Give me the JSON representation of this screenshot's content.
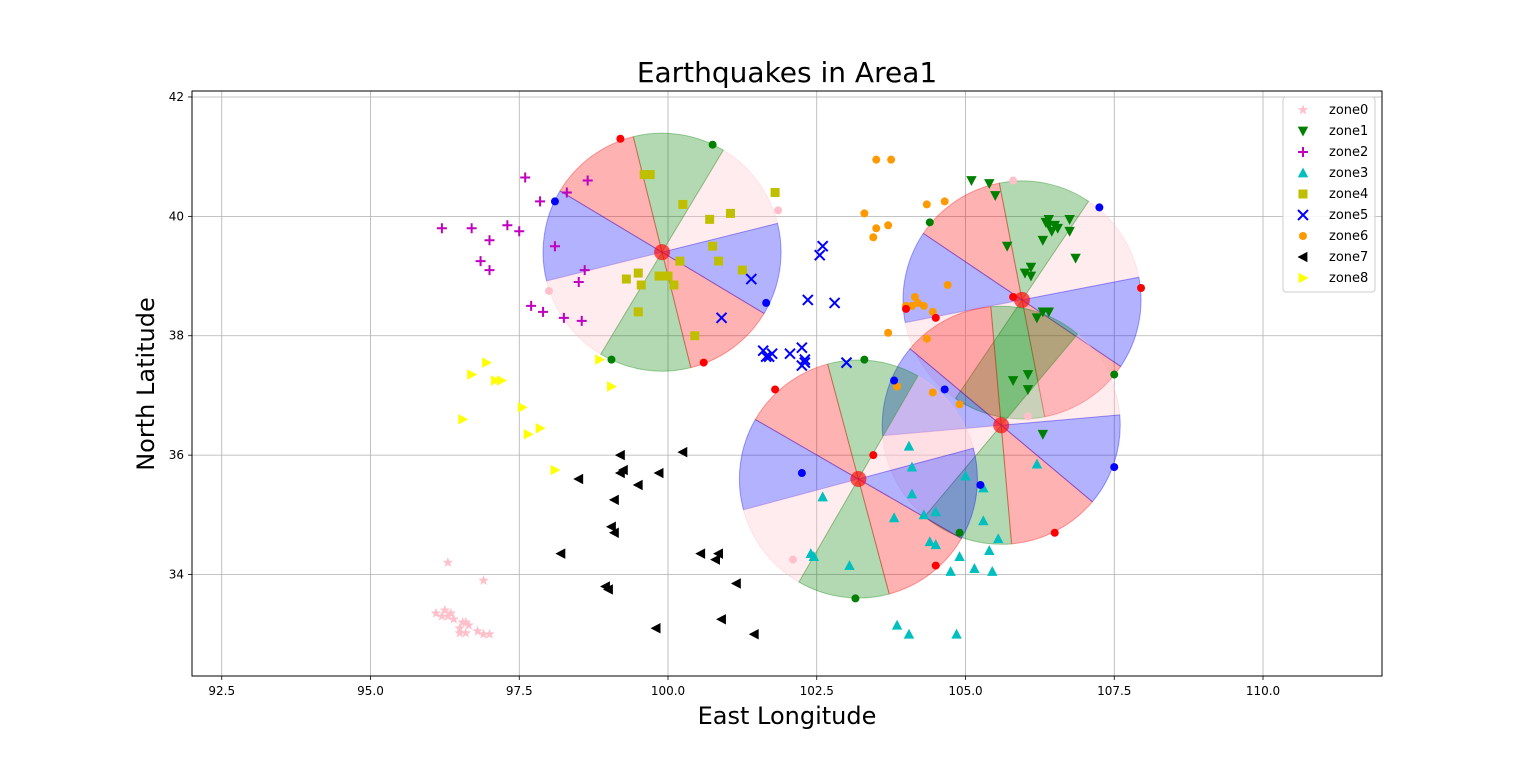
{
  "chart_data": {
    "type": "scatter",
    "title": "Earthquakes in Area1",
    "xlabel": "East Longitude",
    "ylabel": "North Latitude",
    "xlim": [
      92.0,
      112.0
    ],
    "ylim": [
      32.3,
      42.1
    ],
    "xticks": [
      92.5,
      95.0,
      97.5,
      100.0,
      102.5,
      105.0,
      107.5,
      110.0
    ],
    "xtick_labels": [
      "92.5",
      "95.0",
      "97.5",
      "100.0",
      "102.5",
      "105.0",
      "107.5",
      "110.0"
    ],
    "yticks": [
      34,
      36,
      38,
      40,
      42
    ],
    "ytick_labels": [
      "34",
      "36",
      "38",
      "40",
      "42"
    ],
    "grid": true,
    "legend_position": "top-right",
    "series": [
      {
        "name": "zone0",
        "marker": "star",
        "color": "#ffc0cb",
        "points": [
          [
            96.3,
            34.2
          ],
          [
            96.9,
            33.9
          ],
          [
            96.1,
            33.35
          ],
          [
            96.2,
            33.3
          ],
          [
            96.3,
            33.3
          ],
          [
            96.35,
            33.35
          ],
          [
            96.4,
            33.25
          ],
          [
            96.5,
            33.1
          ],
          [
            96.55,
            33.2
          ],
          [
            96.6,
            33.2
          ],
          [
            96.65,
            33.15
          ],
          [
            96.5,
            33.02
          ],
          [
            96.6,
            33.02
          ],
          [
            96.8,
            33.05
          ],
          [
            96.9,
            33.0
          ],
          [
            97.0,
            33.0
          ],
          [
            96.25,
            33.4
          ]
        ]
      },
      {
        "name": "zone1",
        "marker": "triangle-down",
        "color": "#008000",
        "points": [
          [
            105.1,
            40.6
          ],
          [
            105.4,
            40.55
          ],
          [
            105.5,
            40.35
          ],
          [
            105.7,
            39.5
          ],
          [
            106.1,
            39.15
          ],
          [
            106.0,
            39.05
          ],
          [
            106.1,
            39.0
          ],
          [
            106.3,
            39.6
          ],
          [
            106.35,
            39.9
          ],
          [
            106.4,
            39.85
          ],
          [
            106.45,
            39.75
          ],
          [
            106.5,
            39.85
          ],
          [
            106.55,
            39.8
          ],
          [
            106.4,
            39.95
          ],
          [
            106.75,
            39.95
          ],
          [
            106.75,
            39.75
          ],
          [
            106.85,
            39.3
          ],
          [
            106.2,
            38.3
          ],
          [
            106.3,
            38.4
          ],
          [
            106.4,
            38.4
          ],
          [
            105.8,
            37.25
          ],
          [
            106.05,
            37.35
          ],
          [
            106.05,
            37.1
          ],
          [
            106.3,
            36.35
          ]
        ]
      },
      {
        "name": "zone2",
        "marker": "plus",
        "color": "#bf00bf",
        "points": [
          [
            96.2,
            39.8
          ],
          [
            96.7,
            39.8
          ],
          [
            97.3,
            39.85
          ],
          [
            97.5,
            39.75
          ],
          [
            96.85,
            39.25
          ],
          [
            97.0,
            39.6
          ],
          [
            97.0,
            39.1
          ],
          [
            97.6,
            40.65
          ],
          [
            97.85,
            40.25
          ],
          [
            98.1,
            39.5
          ],
          [
            98.3,
            40.4
          ],
          [
            98.65,
            40.6
          ],
          [
            98.6,
            39.1
          ],
          [
            98.5,
            38.9
          ],
          [
            97.7,
            38.5
          ],
          [
            97.9,
            38.4
          ],
          [
            98.25,
            38.3
          ],
          [
            98.55,
            38.25
          ]
        ]
      },
      {
        "name": "zone3",
        "marker": "triangle-up",
        "color": "#00bfbf",
        "points": [
          [
            102.6,
            35.3
          ],
          [
            102.4,
            34.35
          ],
          [
            102.45,
            34.3
          ],
          [
            103.05,
            34.15
          ],
          [
            103.8,
            34.95
          ],
          [
            104.1,
            35.8
          ],
          [
            104.1,
            35.35
          ],
          [
            104.5,
            35.05
          ],
          [
            104.4,
            34.55
          ],
          [
            104.5,
            34.5
          ],
          [
            104.75,
            34.05
          ],
          [
            104.9,
            34.3
          ],
          [
            105.15,
            34.1
          ],
          [
            105.3,
            34.9
          ],
          [
            105.4,
            34.4
          ],
          [
            105.45,
            34.05
          ],
          [
            105.55,
            34.6
          ],
          [
            105.3,
            35.45
          ],
          [
            105.0,
            35.65
          ],
          [
            106.2,
            35.85
          ],
          [
            104.05,
            33.0
          ],
          [
            103.85,
            33.15
          ],
          [
            104.85,
            33.0
          ],
          [
            104.3,
            35.0
          ],
          [
            104.05,
            36.15
          ]
        ]
      },
      {
        "name": "zone4",
        "marker": "square",
        "color": "#bfbf00",
        "points": [
          [
            99.3,
            38.95
          ],
          [
            99.5,
            39.05
          ],
          [
            99.7,
            40.7
          ],
          [
            99.6,
            40.7
          ],
          [
            99.85,
            39.0
          ],
          [
            99.55,
            38.85
          ],
          [
            99.5,
            38.4
          ],
          [
            100.0,
            39.0
          ],
          [
            100.1,
            38.85
          ],
          [
            100.25,
            40.2
          ],
          [
            100.2,
            39.25
          ],
          [
            100.7,
            39.95
          ],
          [
            100.75,
            39.5
          ],
          [
            101.05,
            40.05
          ],
          [
            100.85,
            39.25
          ],
          [
            101.25,
            39.1
          ],
          [
            101.8,
            40.4
          ],
          [
            100.45,
            38.0
          ]
        ]
      },
      {
        "name": "zone5",
        "marker": "x",
        "color": "#0000ff",
        "points": [
          [
            101.4,
            38.95
          ],
          [
            100.9,
            38.3
          ],
          [
            102.6,
            39.5
          ],
          [
            102.55,
            39.35
          ],
          [
            102.35,
            38.6
          ],
          [
            102.8,
            38.55
          ],
          [
            101.6,
            37.75
          ],
          [
            101.7,
            37.65
          ],
          [
            101.75,
            37.7
          ],
          [
            101.65,
            37.65
          ],
          [
            102.05,
            37.7
          ],
          [
            102.25,
            37.8
          ],
          [
            102.3,
            37.6
          ],
          [
            102.25,
            37.5
          ],
          [
            102.3,
            37.55
          ],
          [
            103.0,
            37.55
          ]
        ]
      },
      {
        "name": "zone6",
        "marker": "circle",
        "color": "#ff9900",
        "points": [
          [
            103.5,
            40.95
          ],
          [
            103.75,
            40.95
          ],
          [
            103.3,
            40.05
          ],
          [
            103.5,
            39.8
          ],
          [
            103.7,
            39.85
          ],
          [
            103.45,
            39.65
          ],
          [
            104.35,
            40.2
          ],
          [
            104.65,
            40.25
          ],
          [
            104.0,
            38.5
          ],
          [
            104.1,
            38.5
          ],
          [
            104.2,
            38.55
          ],
          [
            104.3,
            38.5
          ],
          [
            104.15,
            38.65
          ],
          [
            104.45,
            38.4
          ],
          [
            104.7,
            38.85
          ],
          [
            103.7,
            38.05
          ],
          [
            104.35,
            37.95
          ],
          [
            103.85,
            37.15
          ],
          [
            104.45,
            37.05
          ],
          [
            104.9,
            36.85
          ]
        ]
      },
      {
        "name": "zone7",
        "marker": "triangle-left",
        "color": "#000000",
        "points": [
          [
            100.25,
            36.05
          ],
          [
            99.2,
            36.0
          ],
          [
            99.25,
            35.75
          ],
          [
            99.2,
            35.7
          ],
          [
            99.85,
            35.7
          ],
          [
            99.5,
            35.5
          ],
          [
            98.5,
            35.6
          ],
          [
            99.1,
            35.25
          ],
          [
            99.05,
            34.8
          ],
          [
            99.1,
            34.7
          ],
          [
            98.2,
            34.35
          ],
          [
            100.55,
            34.35
          ],
          [
            100.85,
            34.35
          ],
          [
            100.8,
            34.25
          ],
          [
            101.15,
            33.85
          ],
          [
            99.0,
            33.75
          ],
          [
            98.95,
            33.8
          ],
          [
            100.9,
            33.25
          ],
          [
            101.45,
            33.0
          ],
          [
            99.8,
            33.1
          ]
        ]
      },
      {
        "name": "zone8",
        "marker": "triangle-right",
        "color": "#ffff00",
        "points": [
          [
            96.55,
            36.6
          ],
          [
            96.7,
            37.35
          ],
          [
            96.95,
            37.55
          ],
          [
            97.2,
            37.25
          ],
          [
            97.1,
            37.25
          ],
          [
            97.55,
            36.8
          ],
          [
            97.65,
            36.35
          ],
          [
            97.85,
            36.45
          ],
          [
            98.1,
            35.75
          ],
          [
            98.85,
            37.6
          ],
          [
            99.05,
            37.15
          ]
        ]
      }
    ],
    "zone_markers": [
      {
        "color": "#ff0000",
        "points": [
          [
            99.2,
            41.3
          ],
          [
            100.6,
            37.55
          ],
          [
            103.45,
            36.0
          ],
          [
            101.8,
            37.1
          ],
          [
            104.0,
            38.45
          ],
          [
            104.5,
            38.3
          ],
          [
            104.5,
            34.15
          ],
          [
            105.8,
            38.65
          ],
          [
            106.5,
            34.7
          ],
          [
            107.95,
            38.8
          ]
        ]
      },
      {
        "color": "#0000ff",
        "points": [
          [
            98.1,
            40.25
          ],
          [
            101.65,
            38.55
          ],
          [
            102.25,
            35.7
          ],
          [
            103.8,
            37.25
          ],
          [
            104.65,
            37.1
          ],
          [
            105.25,
            35.5
          ],
          [
            107.25,
            40.15
          ],
          [
            107.5,
            35.8
          ]
        ]
      },
      {
        "color": "#008000",
        "points": [
          [
            100.75,
            41.2
          ],
          [
            99.05,
            37.6
          ],
          [
            103.3,
            37.6
          ],
          [
            103.15,
            33.6
          ],
          [
            104.4,
            39.9
          ],
          [
            104.9,
            34.7
          ],
          [
            107.5,
            37.35
          ]
        ]
      },
      {
        "color": "#ffc0cb",
        "points": [
          [
            98.0,
            38.75
          ],
          [
            101.85,
            40.1
          ],
          [
            102.1,
            34.25
          ],
          [
            105.8,
            40.6
          ],
          [
            106.05,
            36.65
          ]
        ]
      }
    ],
    "focal_mechanisms": [
      {
        "lon": 99.9,
        "lat": 39.4,
        "radius": 2.0,
        "start_angle": 14,
        "colors": [
          "#ffc0cb",
          "#008000",
          "#ff0000",
          "#0000ff",
          "#ffc0cb",
          "#008000",
          "#ff0000",
          "#0000ff"
        ]
      },
      {
        "lon": 105.95,
        "lat": 38.6,
        "radius": 2.0,
        "start_angle": 11,
        "colors": [
          "#ffc0cb",
          "#008000",
          "#ff0000",
          "#0000ff",
          "#ffc0cb",
          "#008000",
          "#ff0000",
          "#0000ff"
        ]
      },
      {
        "lon": 105.6,
        "lat": 36.5,
        "radius": 2.0,
        "start_angle": 5,
        "colors": [
          "#ffc0cb",
          "#008000",
          "#ff0000",
          "#0000ff",
          "#ffc0cb",
          "#008000",
          "#ff0000",
          "#0000ff"
        ]
      },
      {
        "lon": 103.2,
        "lat": 35.6,
        "radius": 2.0,
        "start_angle": 15,
        "colors": [
          "#ffc0cb",
          "#008000",
          "#ff0000",
          "#0000ff",
          "#ffc0cb",
          "#008000",
          "#ff0000",
          "#0000ff"
        ]
      }
    ]
  }
}
